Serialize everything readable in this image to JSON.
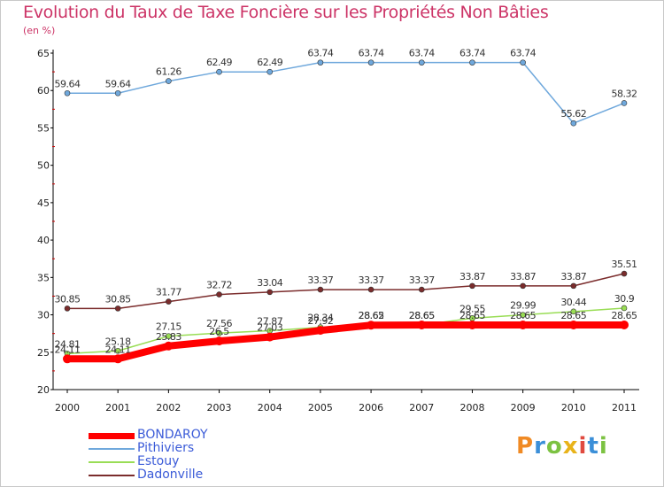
{
  "header": {
    "title": "Evolution du Taux de Taxe Foncière sur les Propriétés Non Bâties",
    "unit": "(en %)"
  },
  "chart_data": {
    "type": "line",
    "title": "Evolution du Taux de Taxe Foncière sur les Propriétés Non Bâties",
    "ylabel": "(en %)",
    "xlabel": "",
    "ylim": [
      20,
      65
    ],
    "yticks": [
      20,
      25,
      30,
      35,
      40,
      45,
      50,
      55,
      60,
      65
    ],
    "grid": false,
    "x": [
      "2000",
      "2001",
      "2002",
      "2003",
      "2004",
      "2005",
      "2006",
      "2007",
      "2008",
      "2009",
      "2010",
      "2011"
    ],
    "series": [
      {
        "name": "Pithiviers",
        "color": "#6fa8dc",
        "values": [
          59.64,
          59.64,
          61.26,
          62.49,
          62.49,
          63.74,
          63.74,
          63.74,
          63.74,
          63.74,
          55.62,
          58.32
        ],
        "labels": [
          "59.64",
          "59.64",
          "61.26",
          "62.49",
          "62.49",
          "63.74",
          "63.74",
          "63.74",
          "63.74",
          "63.74",
          "55.62",
          "58.32"
        ]
      },
      {
        "name": "Dadonville",
        "color": "#7b2c2c",
        "values": [
          30.85,
          30.85,
          31.77,
          32.72,
          33.04,
          33.37,
          33.37,
          33.37,
          33.87,
          33.87,
          33.87,
          35.51
        ],
        "labels": [
          "30.85",
          "30.85",
          "31.77",
          "32.72",
          "33.04",
          "33.37",
          "33.37",
          "33.37",
          "33.87",
          "33.87",
          "33.87",
          "35.51"
        ]
      },
      {
        "name": "Estouy",
        "color": "#99dd55",
        "values": [
          24.81,
          25.18,
          27.15,
          27.56,
          27.87,
          28.34,
          28.65,
          28.65,
          29.55,
          29.99,
          30.44,
          30.9
        ],
        "labels": [
          "24.81",
          "25.18",
          "27.15",
          "27.56",
          "27.87",
          "28.34",
          "28.65",
          "28.65",
          "29.55",
          "29.99",
          "30.44",
          "30.9"
        ]
      },
      {
        "name": "BONDAROY",
        "color": "#ff0000",
        "values": [
          24.11,
          24.11,
          25.83,
          26.5,
          27.03,
          27.92,
          28.62,
          28.65,
          28.65,
          28.65,
          28.65,
          28.65
        ],
        "labels": [
          "24.11",
          "24.11",
          "25.83",
          "26.5",
          "27.03",
          "27.92",
          "28.62",
          "28.65",
          "28.65",
          "28.65",
          "28.65",
          "28.65"
        ]
      }
    ],
    "legend": {
      "position": "bottom-left",
      "entries": [
        "BONDAROY",
        "Pithiviers",
        "Estouy",
        "Dadonville"
      ]
    }
  },
  "logo": {
    "text": "Proxiti"
  }
}
